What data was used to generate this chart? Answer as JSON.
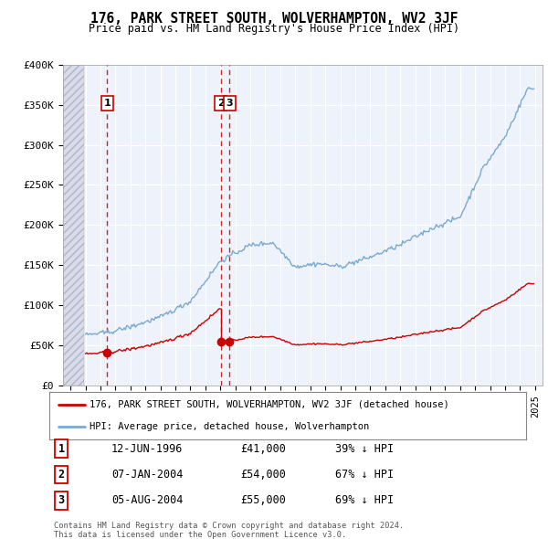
{
  "title": "176, PARK STREET SOUTH, WOLVERHAMPTON, WV2 3JF",
  "subtitle": "Price paid vs. HM Land Registry's House Price Index (HPI)",
  "legend_line1": "176, PARK STREET SOUTH, WOLVERHAMPTON, WV2 3JF (detached house)",
  "legend_line2": "HPI: Average price, detached house, Wolverhampton",
  "transactions": [
    {
      "num": 1,
      "date_label": "12-JUN-1996",
      "date_x": 1996.45,
      "price": 41000,
      "pct": "39% ↓ HPI"
    },
    {
      "num": 2,
      "date_label": "07-JAN-2004",
      "date_x": 2004.03,
      "price": 54000,
      "pct": "67% ↓ HPI"
    },
    {
      "num": 3,
      "date_label": "05-AUG-2004",
      "date_x": 2004.6,
      "price": 55000,
      "pct": "69% ↓ HPI"
    }
  ],
  "table_rows": [
    [
      "1",
      "12-JUN-1996",
      "£41,000",
      "39% ↓ HPI"
    ],
    [
      "2",
      "07-JAN-2004",
      "£54,000",
      "67% ↓ HPI"
    ],
    [
      "3",
      "05-AUG-2004",
      "£55,000",
      "69% ↓ HPI"
    ]
  ],
  "footer": "Contains HM Land Registry data © Crown copyright and database right 2024.\nThis data is licensed under the Open Government Licence v3.0.",
  "hpi_color": "#7aaad0",
  "price_color": "#cc0000",
  "dashed_color": "#cc0000",
  "bg_color": "#eef2fa",
  "ylim": [
    0,
    400000
  ],
  "xlim_start": 1993.5,
  "xlim_end": 2025.5,
  "yticks": [
    0,
    50000,
    100000,
    150000,
    200000,
    250000,
    300000,
    350000,
    400000
  ],
  "ylabels": [
    "£0",
    "£50K",
    "£100K",
    "£150K",
    "£200K",
    "£250K",
    "£300K",
    "£350K",
    "£400K"
  ]
}
